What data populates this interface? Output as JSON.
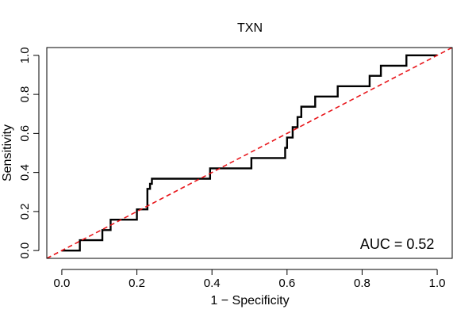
{
  "chart_data": {
    "type": "line",
    "title": "TXN",
    "xlabel": "1 − Specificity",
    "ylabel": "Sensitivity",
    "xlim": [
      -0.04,
      1.04
    ],
    "ylim": [
      -0.04,
      1.04
    ],
    "x_ticks": [
      0.0,
      0.2,
      0.4,
      0.6,
      0.8,
      1.0
    ],
    "x_tick_labels": [
      "0.0",
      "0.2",
      "0.4",
      "0.6",
      "0.8",
      "1.0"
    ],
    "y_ticks": [
      0.0,
      0.2,
      0.4,
      0.6,
      0.8,
      1.0
    ],
    "y_tick_labels": [
      "0.0",
      "0.2",
      "0.4",
      "0.6",
      "0.8",
      "1.0"
    ],
    "grid": false,
    "legend": "none",
    "series": [
      {
        "color": "#000000",
        "points": [
          [
            0.0,
            0.0
          ],
          [
            0.048,
            0.0
          ],
          [
            0.048,
            0.053
          ],
          [
            0.108,
            0.053
          ],
          [
            0.108,
            0.105
          ],
          [
            0.13,
            0.105
          ],
          [
            0.13,
            0.158
          ],
          [
            0.2,
            0.158
          ],
          [
            0.2,
            0.211
          ],
          [
            0.228,
            0.211
          ],
          [
            0.228,
            0.316
          ],
          [
            0.235,
            0.316
          ],
          [
            0.235,
            0.342
          ],
          [
            0.24,
            0.342
          ],
          [
            0.24,
            0.368
          ],
          [
            0.395,
            0.368
          ],
          [
            0.395,
            0.421
          ],
          [
            0.505,
            0.421
          ],
          [
            0.505,
            0.474
          ],
          [
            0.595,
            0.474
          ],
          [
            0.595,
            0.526
          ],
          [
            0.6,
            0.526
          ],
          [
            0.6,
            0.579
          ],
          [
            0.615,
            0.579
          ],
          [
            0.615,
            0.632
          ],
          [
            0.628,
            0.632
          ],
          [
            0.628,
            0.684
          ],
          [
            0.638,
            0.684
          ],
          [
            0.638,
            0.737
          ],
          [
            0.675,
            0.737
          ],
          [
            0.675,
            0.789
          ],
          [
            0.735,
            0.789
          ],
          [
            0.735,
            0.842
          ],
          [
            0.82,
            0.842
          ],
          [
            0.82,
            0.895
          ],
          [
            0.85,
            0.895
          ],
          [
            0.85,
            0.947
          ],
          [
            0.918,
            0.947
          ],
          [
            0.918,
            1.0
          ],
          [
            1.0,
            1.0
          ]
        ]
      },
      {
        "color": "#e8161b",
        "style": "dashed",
        "points": [
          [
            -0.04,
            -0.04
          ],
          [
            1.04,
            1.04
          ]
        ]
      }
    ],
    "annotations": [
      {
        "text": "AUC = 0.52",
        "x": 0.95,
        "y": 0.025
      }
    ]
  }
}
